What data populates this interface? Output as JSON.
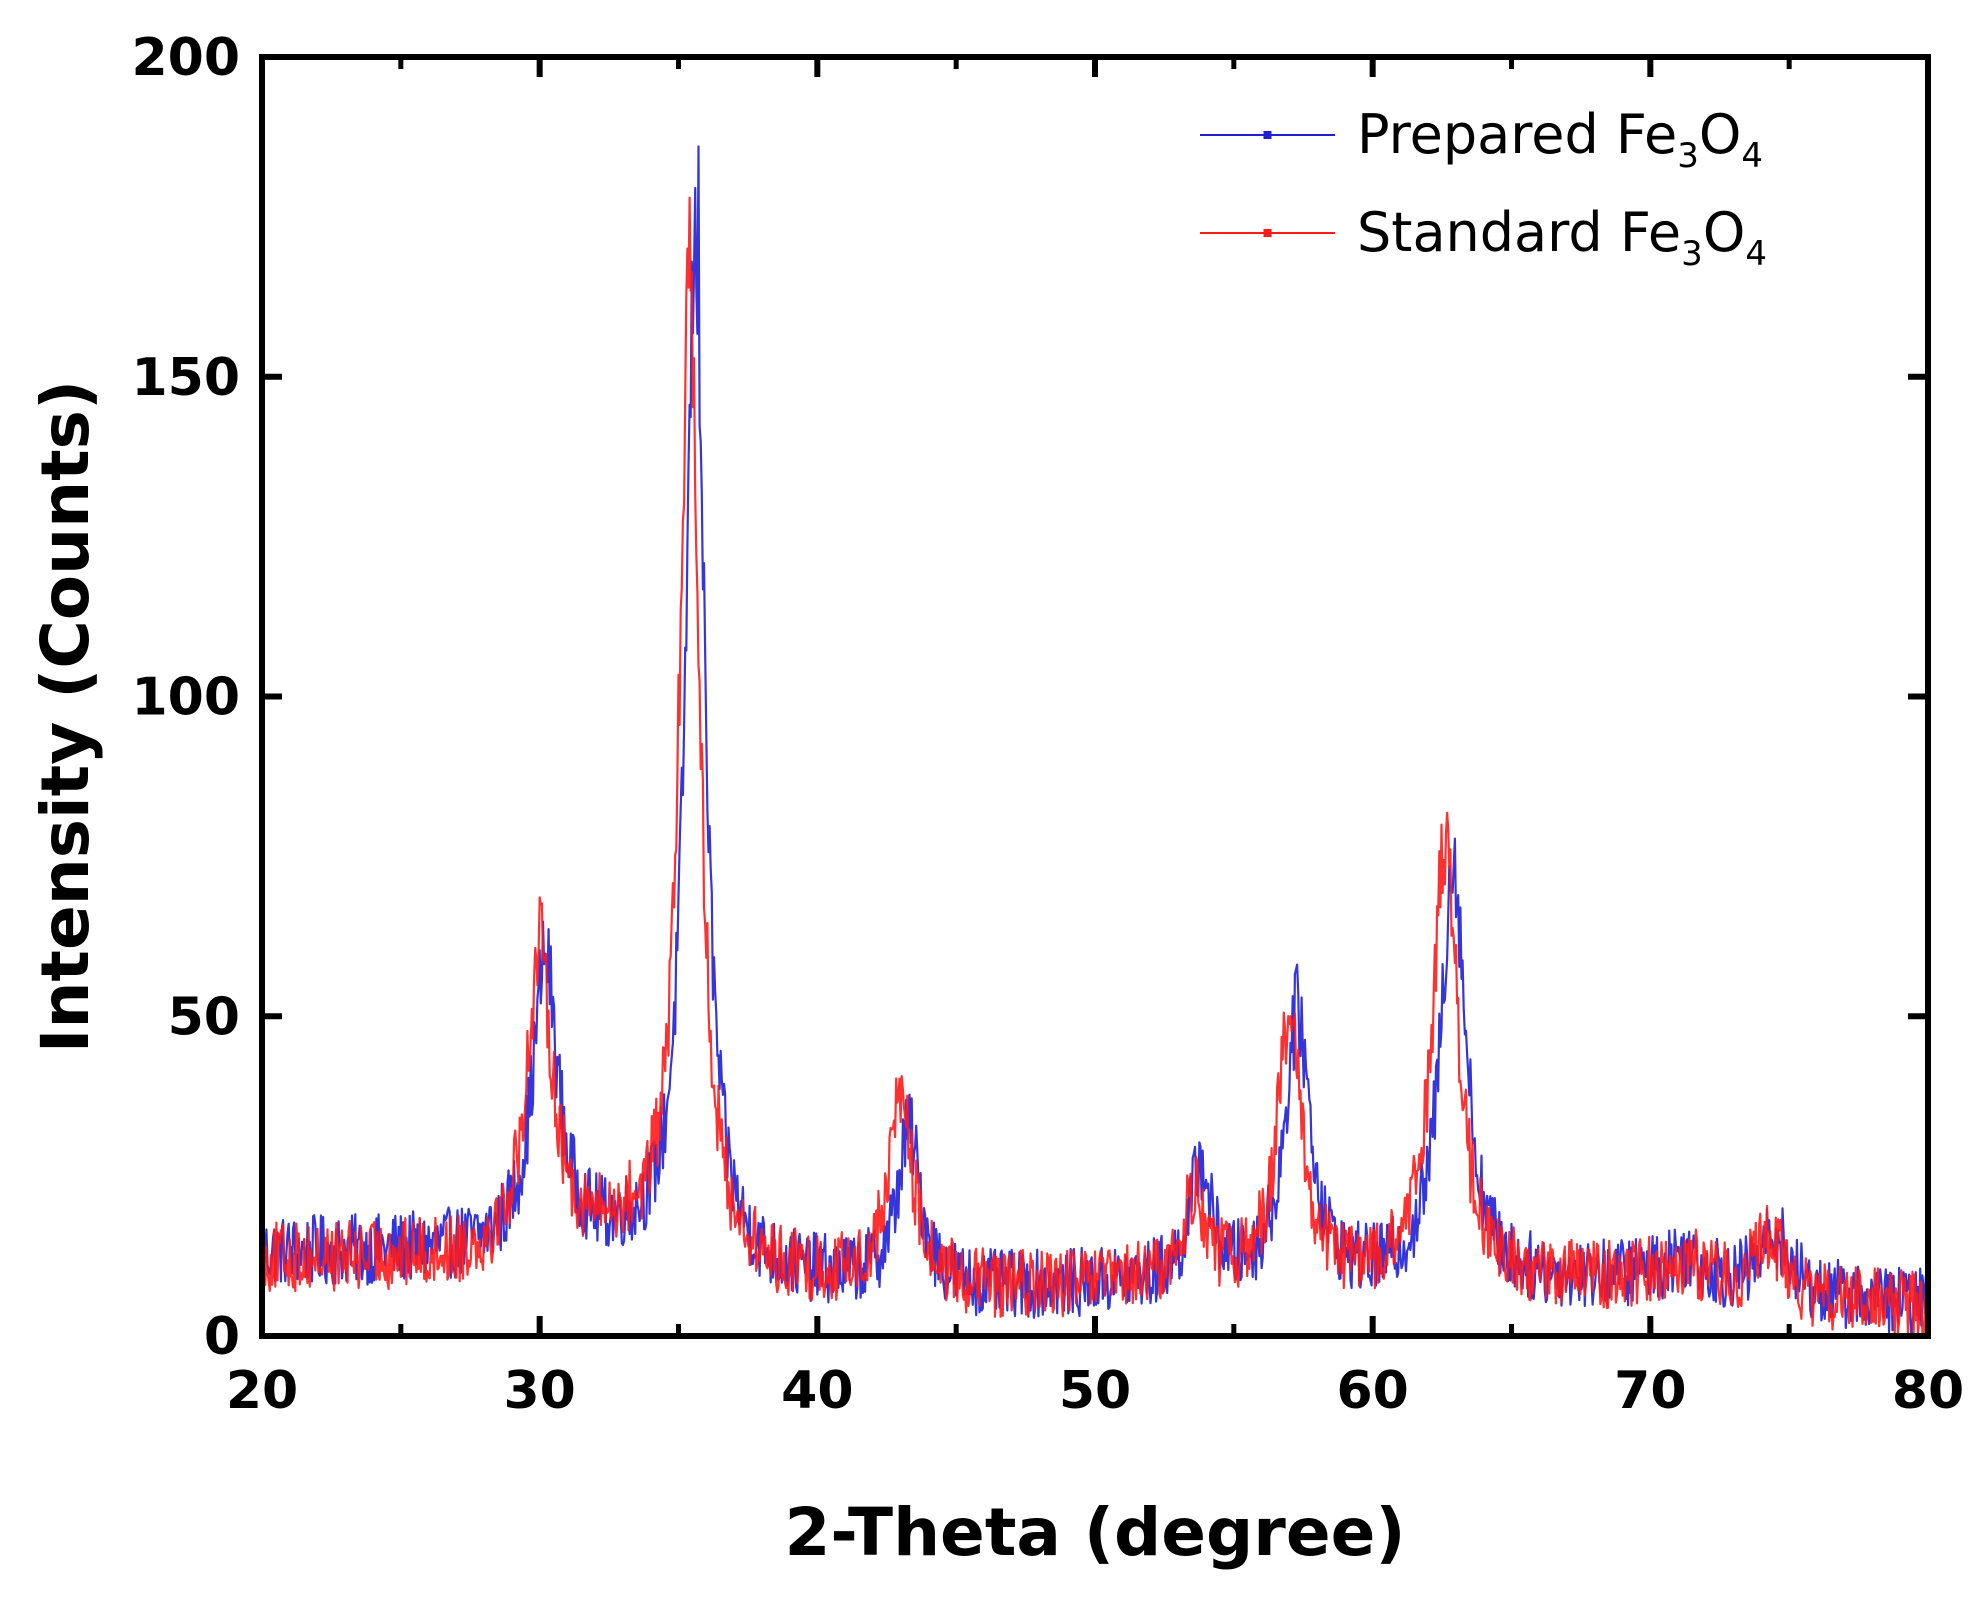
{
  "chart_data": {
    "type": "line",
    "title": "",
    "xlabel": "2-Theta (degree)",
    "ylabel": "Intensity (Counts)",
    "xlim": [
      20,
      80
    ],
    "ylim": [
      0,
      200
    ],
    "xticks": [
      20,
      30,
      40,
      50,
      60,
      70,
      80
    ],
    "yticks": [
      0,
      50,
      100,
      150,
      200
    ],
    "grid": false,
    "legend_position": "top-right",
    "series": [
      {
        "name": "Prepared Fe3O4",
        "legend": {
          "prefix": "Prepared Fe",
          "sub1": "3",
          "mid": "O",
          "sub2": "4"
        },
        "color": "#1f1fd8",
        "baseline": [
          [
            20,
            13
          ],
          [
            28,
            13
          ],
          [
            33,
            14
          ],
          [
            38,
            9
          ],
          [
            46,
            7
          ],
          [
            52,
            8
          ],
          [
            65,
            8
          ],
          [
            70,
            9
          ],
          [
            72,
            8
          ],
          [
            76,
            6
          ],
          [
            80,
            5
          ]
        ],
        "peaks": [
          {
            "x": 30.2,
            "height": 45,
            "width": 0.55
          },
          {
            "x": 35.6,
            "height": 158,
            "width": 0.42
          },
          {
            "x": 43.3,
            "height": 24,
            "width": 0.5
          },
          {
            "x": 53.8,
            "height": 18,
            "width": 0.45
          },
          {
            "x": 57.3,
            "height": 42,
            "width": 0.55
          },
          {
            "x": 62.9,
            "height": 66,
            "width": 0.55
          },
          {
            "x": 71.3,
            "height": 4,
            "width": 0.8
          },
          {
            "x": 74.5,
            "height": 9,
            "width": 0.6
          }
        ],
        "noise": 5,
        "max_point": [
          35.7,
          186
        ]
      },
      {
        "name": "Standard Fe3O4",
        "legend": {
          "prefix": "Standard Fe",
          "sub1": "3",
          "mid": "O",
          "sub2": "4"
        },
        "color": "#ff1a1a",
        "baseline": [
          [
            20,
            12
          ],
          [
            28,
            12
          ],
          [
            33,
            15
          ],
          [
            38,
            9
          ],
          [
            46,
            7
          ],
          [
            52,
            8
          ],
          [
            65,
            8
          ],
          [
            70,
            9
          ],
          [
            72,
            8
          ],
          [
            76,
            5
          ],
          [
            80,
            5
          ]
        ],
        "peaks": [
          {
            "x": 30.0,
            "height": 47,
            "width": 0.55
          },
          {
            "x": 35.4,
            "height": 155,
            "width": 0.42
          },
          {
            "x": 43.0,
            "height": 30,
            "width": 0.5
          },
          {
            "x": 53.6,
            "height": 14,
            "width": 0.45
          },
          {
            "x": 57.0,
            "height": 40,
            "width": 0.55
          },
          {
            "x": 62.6,
            "height": 70,
            "width": 0.55
          },
          {
            "x": 71.2,
            "height": 3,
            "width": 0.8
          },
          {
            "x": 74.3,
            "height": 9,
            "width": 0.6
          }
        ],
        "noise": 5,
        "max_point": [
          35.4,
          178
        ]
      }
    ]
  }
}
